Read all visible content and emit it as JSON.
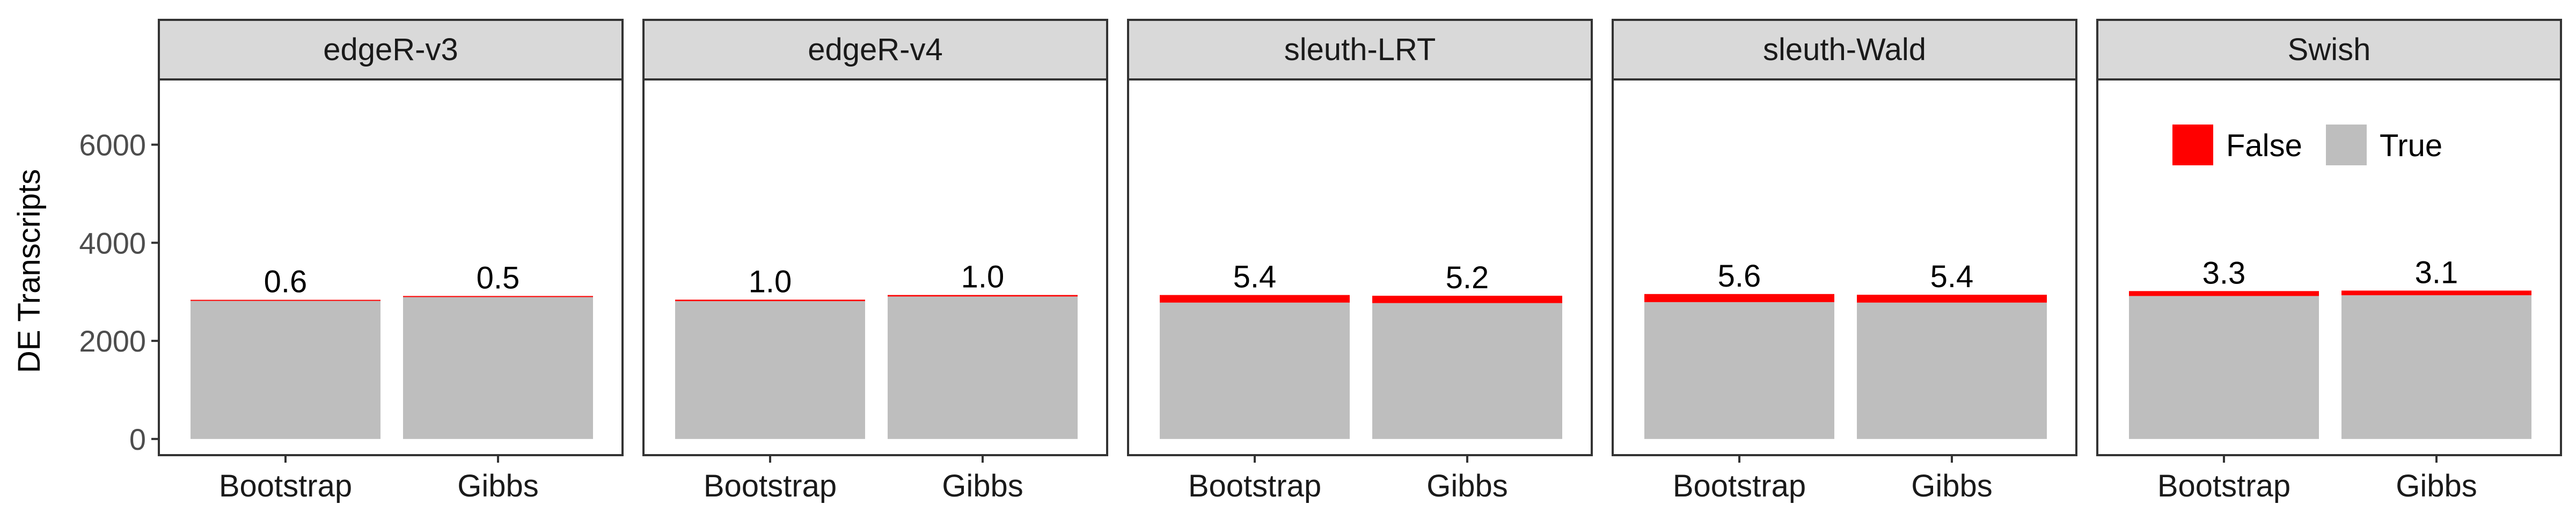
{
  "chart_data": {
    "type": "bar",
    "stacked": true,
    "ylabel": "DE Transcripts",
    "xlabel": "",
    "ylim": [
      -330,
      7330
    ],
    "yticks": [
      0,
      2000,
      4000,
      6000
    ],
    "grid": false,
    "legend": {
      "placement": "top-right, inside last panel",
      "entries": [
        {
          "label": "False",
          "color": "#ff0000"
        },
        {
          "label": "True",
          "color": "#bebebe"
        }
      ]
    },
    "categories": [
      "Bootstrap",
      "Gibbs"
    ],
    "panels": [
      {
        "title": "edgeR-v3",
        "bars": [
          {
            "category": "Bootstrap",
            "true": 2820,
            "false": 17,
            "label": "0.6"
          },
          {
            "category": "Gibbs",
            "true": 2900,
            "false": 15,
            "label": "0.5"
          }
        ]
      },
      {
        "title": "edgeR-v4",
        "bars": [
          {
            "category": "Bootstrap",
            "true": 2810,
            "false": 30,
            "label": "1.0"
          },
          {
            "category": "Gibbs",
            "true": 2905,
            "false": 30,
            "label": "1.0"
          }
        ]
      },
      {
        "title": "sleuth-LRT",
        "bars": [
          {
            "category": "Bootstrap",
            "true": 2780,
            "false": 155,
            "label": "5.4"
          },
          {
            "category": "Gibbs",
            "true": 2770,
            "false": 150,
            "label": "5.2"
          }
        ]
      },
      {
        "title": "sleuth-Wald",
        "bars": [
          {
            "category": "Bootstrap",
            "true": 2790,
            "false": 165,
            "label": "5.6"
          },
          {
            "category": "Gibbs",
            "true": 2780,
            "false": 160,
            "label": "5.4"
          }
        ]
      },
      {
        "title": "Swish",
        "bars": [
          {
            "category": "Bootstrap",
            "true": 2915,
            "false": 100,
            "label": "3.3"
          },
          {
            "category": "Gibbs",
            "true": 2930,
            "false": 95,
            "label": "3.1"
          }
        ]
      }
    ]
  }
}
